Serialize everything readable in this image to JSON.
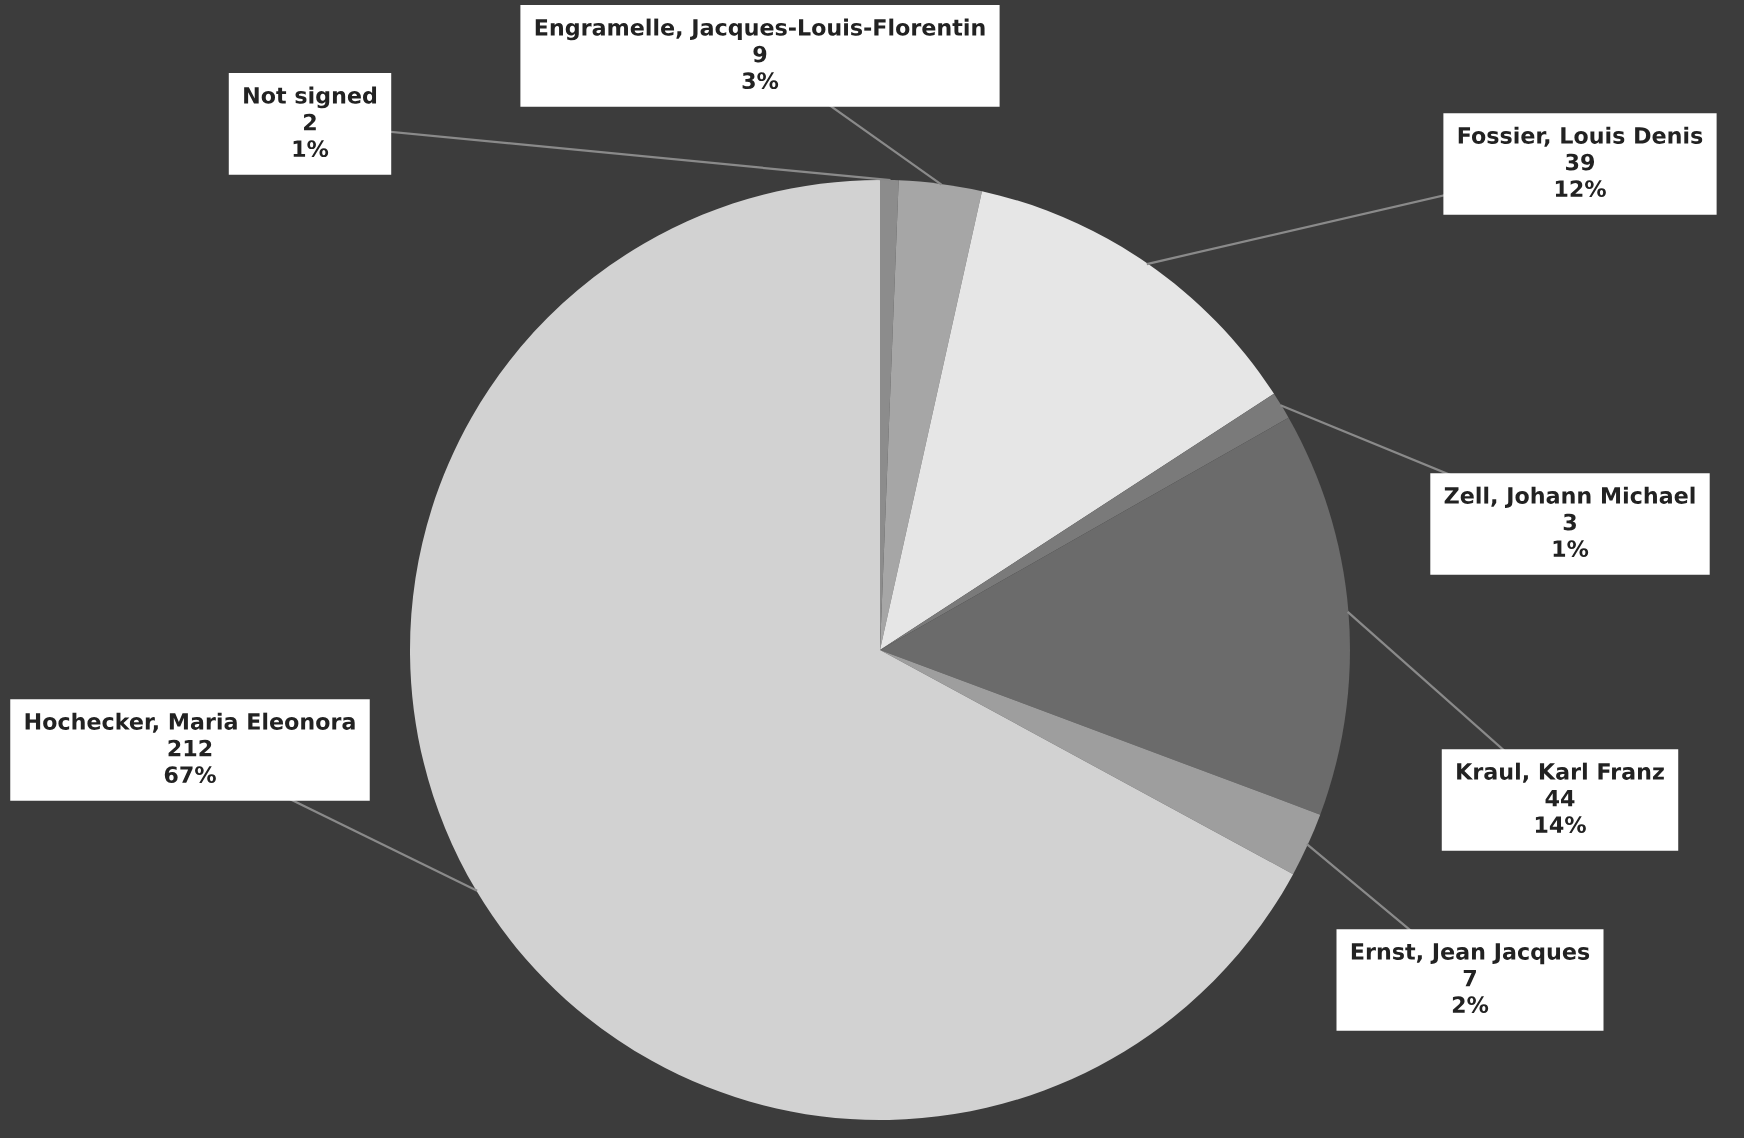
{
  "chart_data": {
    "type": "pie",
    "categories": [
      "Not signed",
      "Engramelle, Jacques-Louis-Florentin",
      "Fossier, Louis Denis",
      "Zell, Johann Michael",
      "Kraul, Karl Franz",
      "Ernst, Jean Jacques",
      "Hochecker, Maria Eleonora"
    ],
    "values": [
      2,
      9,
      39,
      3,
      44,
      7,
      212
    ],
    "value_labels": [
      "2\n1%",
      "9\n3%",
      "39\n12%",
      "3\n1%",
      "44\n14%",
      "7\n2%",
      "212\n67%"
    ],
    "colors": [
      "#8c8c8c",
      "#a6a6a6",
      "#e6e6e6",
      "#7a7a7a",
      "#6b6b6b",
      "#9e9e9e",
      "#d2d2d2"
    ],
    "legend": false
  }
}
